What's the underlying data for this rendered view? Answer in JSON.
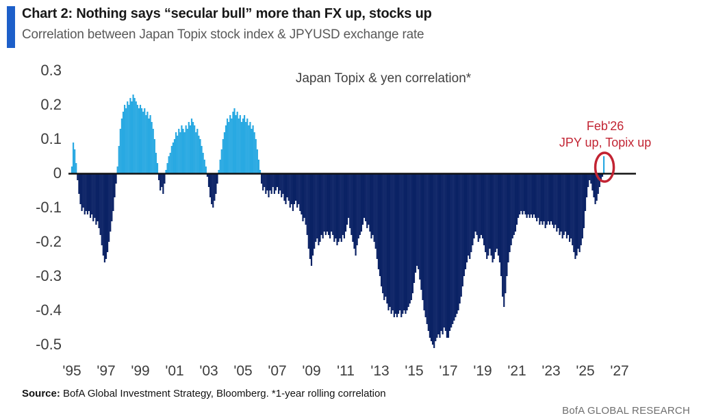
{
  "header": {
    "title": "Chart 2: Nothing says “secular bull” more than FX up, stocks up",
    "subtitle": "Correlation between Japan Topix stock index & JPYUSD exchange rate",
    "accent_color": "#1d5fc9"
  },
  "footer": {
    "source_label": "Source:",
    "source_text": " BofA Global Investment Strategy, Bloomberg. *1-year rolling correlation",
    "brand": "BofA GLOBAL RESEARCH"
  },
  "chart_data": {
    "type": "bar",
    "title": "Japan Topix & yen correlation*",
    "xlabel": "",
    "ylabel": "",
    "ylim": [
      -0.5,
      0.3
    ],
    "yticks": [
      0.3,
      0.2,
      0.1,
      0,
      -0.1,
      -0.2,
      -0.3,
      -0.4,
      -0.5
    ],
    "xtick_labels": [
      "'95",
      "'97",
      "'99",
      "'01",
      "'03",
      "'05",
      "'07",
      "'09",
      "'11",
      "'13",
      "'15",
      "'17",
      "'19",
      "'21",
      "'23",
      "'25",
      "'27"
    ],
    "xtick_years": [
      1995,
      1997,
      1999,
      2001,
      2003,
      2005,
      2007,
      2009,
      2011,
      2013,
      2015,
      2017,
      2019,
      2021,
      2023,
      2025,
      2027
    ],
    "grid": false,
    "legend_position": "none",
    "positive_color": "#29a9e2",
    "negative_color": "#0b2265",
    "zero_line_color": "#111111",
    "x_start_year": 1995,
    "x_step_months": 1,
    "annotation": {
      "lines": [
        "Feb'26",
        "JPY up, Topix up"
      ],
      "color": "#c22433",
      "circled_point": {
        "year": 2026,
        "month": 2,
        "value": 0.05
      }
    },
    "values": [
      0.02,
      0.09,
      0.07,
      0.03,
      -0.02,
      -0.06,
      -0.09,
      -0.11,
      -0.1,
      -0.12,
      -0.11,
      -0.12,
      -0.11,
      -0.13,
      -0.12,
      -0.14,
      -0.13,
      -0.15,
      -0.14,
      -0.16,
      -0.18,
      -0.21,
      -0.24,
      -0.26,
      -0.25,
      -0.23,
      -0.2,
      -0.17,
      -0.14,
      -0.11,
      -0.07,
      -0.03,
      0.02,
      0.08,
      0.13,
      0.16,
      0.18,
      0.2,
      0.19,
      0.21,
      0.2,
      0.22,
      0.21,
      0.23,
      0.22,
      0.21,
      0.2,
      0.19,
      0.2,
      0.19,
      0.18,
      0.19,
      0.17,
      0.18,
      0.16,
      0.17,
      0.15,
      0.13,
      0.1,
      0.06,
      0.03,
      -0.02,
      -0.05,
      -0.04,
      -0.06,
      -0.03,
      0.01,
      0.03,
      0.05,
      0.06,
      0.08,
      0.09,
      0.1,
      0.12,
      0.11,
      0.13,
      0.12,
      0.14,
      0.13,
      0.12,
      0.14,
      0.13,
      0.15,
      0.14,
      0.16,
      0.15,
      0.14,
      0.12,
      0.13,
      0.11,
      0.1,
      0.08,
      0.06,
      0.04,
      0.02,
      -0.01,
      -0.04,
      -0.07,
      -0.09,
      -0.1,
      -0.08,
      -0.06,
      -0.03,
      0.01,
      0.04,
      0.07,
      0.1,
      0.12,
      0.14,
      0.16,
      0.15,
      0.17,
      0.16,
      0.18,
      0.19,
      0.17,
      0.18,
      0.16,
      0.17,
      0.15,
      0.16,
      0.17,
      0.15,
      0.16,
      0.14,
      0.15,
      0.13,
      0.14,
      0.12,
      0.1,
      0.07,
      0.04,
      0.01,
      -0.03,
      -0.05,
      -0.04,
      -0.06,
      -0.05,
      -0.07,
      -0.05,
      -0.06,
      -0.04,
      -0.06,
      -0.05,
      -0.04,
      -0.06,
      -0.05,
      -0.07,
      -0.06,
      -0.08,
      -0.09,
      -0.07,
      -0.08,
      -0.1,
      -0.09,
      -0.11,
      -0.09,
      -0.08,
      -0.1,
      -0.09,
      -0.11,
      -0.12,
      -0.14,
      -0.13,
      -0.15,
      -0.18,
      -0.22,
      -0.25,
      -0.27,
      -0.24,
      -0.22,
      -0.2,
      -0.19,
      -0.21,
      -0.2,
      -0.18,
      -0.19,
      -0.17,
      -0.18,
      -0.17,
      -0.18,
      -0.19,
      -0.17,
      -0.18,
      -0.2,
      -0.19,
      -0.21,
      -0.2,
      -0.19,
      -0.2,
      -0.18,
      -0.19,
      -0.17,
      -0.15,
      -0.13,
      -0.16,
      -0.18,
      -0.2,
      -0.22,
      -0.24,
      -0.21,
      -0.19,
      -0.18,
      -0.17,
      -0.15,
      -0.13,
      -0.14,
      -0.16,
      -0.15,
      -0.17,
      -0.19,
      -0.18,
      -0.2,
      -0.22,
      -0.25,
      -0.28,
      -0.3,
      -0.33,
      -0.35,
      -0.37,
      -0.36,
      -0.38,
      -0.4,
      -0.39,
      -0.41,
      -0.4,
      -0.42,
      -0.41,
      -0.42,
      -0.41,
      -0.4,
      -0.42,
      -0.41,
      -0.4,
      -0.41,
      -0.4,
      -0.39,
      -0.38,
      -0.37,
      -0.35,
      -0.32,
      -0.29,
      -0.27,
      -0.28,
      -0.31,
      -0.34,
      -0.37,
      -0.4,
      -0.42,
      -0.44,
      -0.46,
      -0.48,
      -0.49,
      -0.5,
      -0.51,
      -0.49,
      -0.48,
      -0.47,
      -0.48,
      -0.46,
      -0.47,
      -0.45,
      -0.46,
      -0.48,
      -0.48,
      -0.46,
      -0.45,
      -0.44,
      -0.43,
      -0.42,
      -0.41,
      -0.4,
      -0.38,
      -0.36,
      -0.33,
      -0.3,
      -0.28,
      -0.26,
      -0.24,
      -0.25,
      -0.23,
      -0.21,
      -0.19,
      -0.17,
      -0.18,
      -0.2,
      -0.19,
      -0.18,
      -0.19,
      -0.21,
      -0.23,
      -0.25,
      -0.24,
      -0.22,
      -0.24,
      -0.26,
      -0.25,
      -0.23,
      -0.22,
      -0.24,
      -0.26,
      -0.3,
      -0.36,
      -0.39,
      -0.35,
      -0.3,
      -0.26,
      -0.23,
      -0.21,
      -0.19,
      -0.18,
      -0.17,
      -0.15,
      -0.13,
      -0.12,
      -0.11,
      -0.12,
      -0.11,
      -0.12,
      -0.13,
      -0.12,
      -0.13,
      -0.12,
      -0.13,
      -0.12,
      -0.13,
      -0.14,
      -0.13,
      -0.15,
      -0.14,
      -0.15,
      -0.14,
      -0.16,
      -0.15,
      -0.14,
      -0.15,
      -0.14,
      -0.15,
      -0.16,
      -0.15,
      -0.17,
      -0.16,
      -0.18,
      -0.17,
      -0.19,
      -0.18,
      -0.17,
      -0.19,
      -0.18,
      -0.2,
      -0.19,
      -0.21,
      -0.23,
      -0.25,
      -0.24,
      -0.22,
      -0.23,
      -0.21,
      -0.19,
      -0.16,
      -0.11,
      -0.07,
      -0.04,
      -0.02,
      -0.03,
      -0.05,
      -0.07,
      -0.09,
      -0.08,
      -0.06,
      -0.04,
      -0.02,
      -0.01,
      0.05
    ]
  }
}
